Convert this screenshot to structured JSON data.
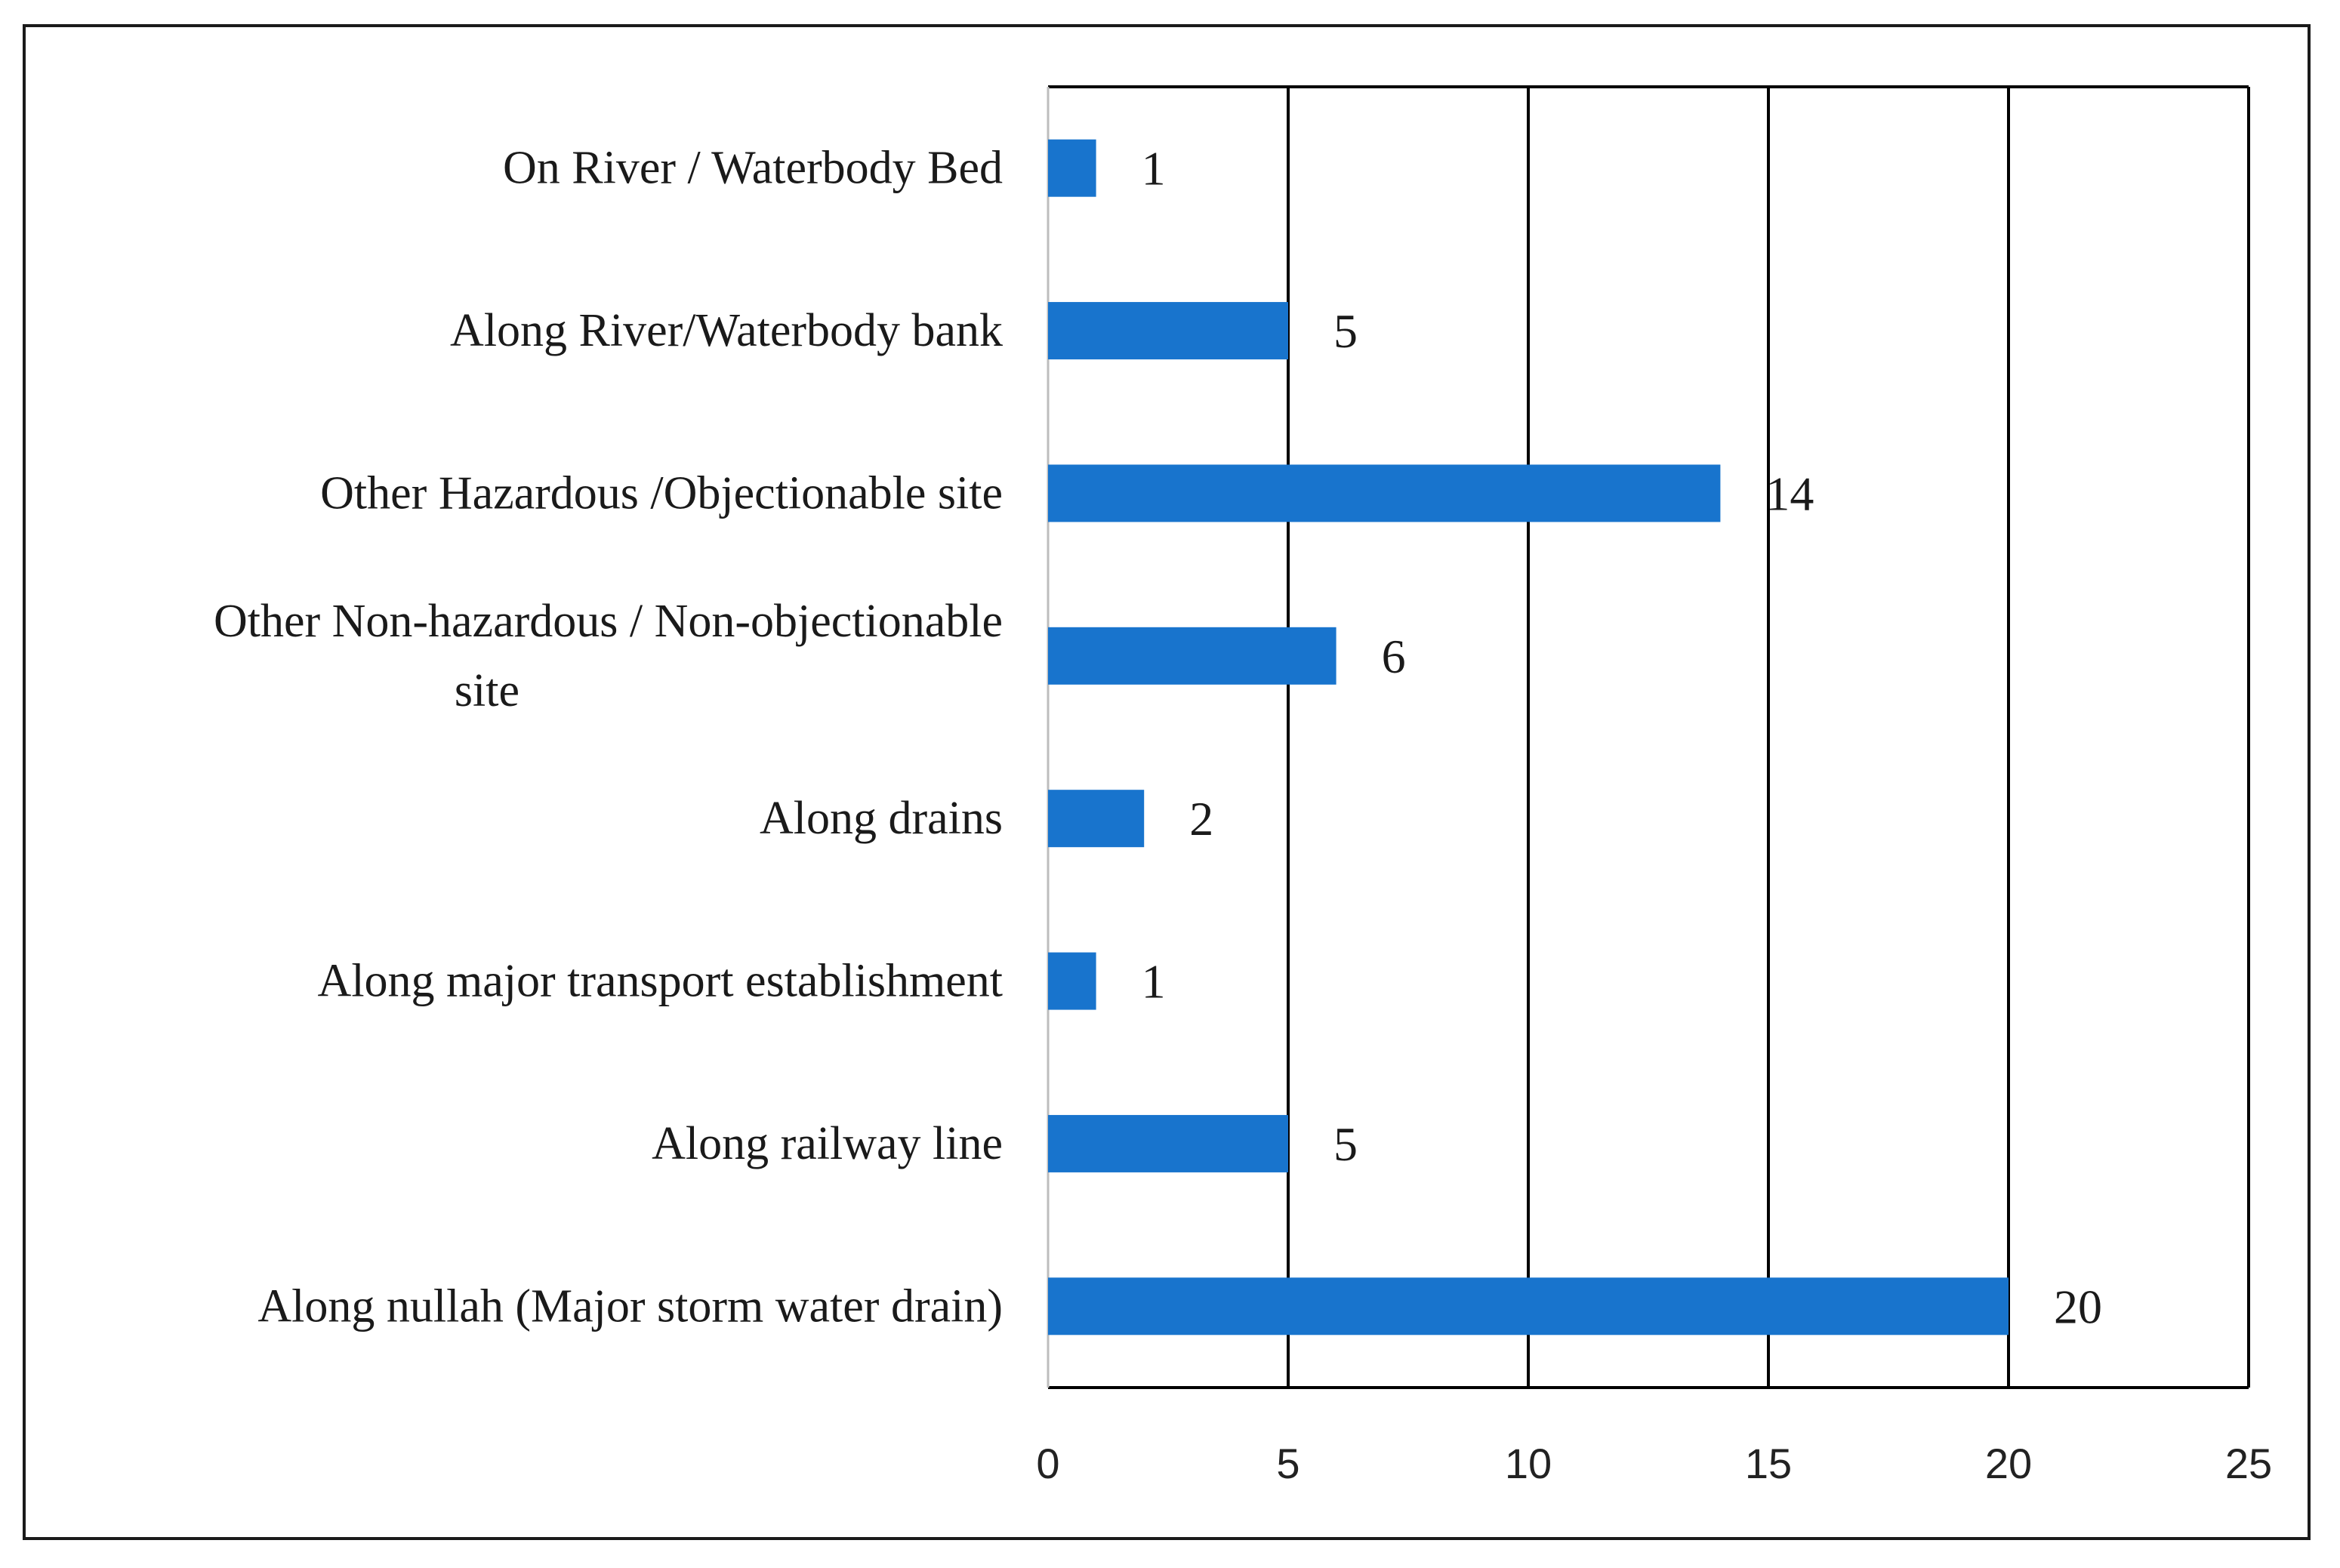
{
  "chart_data": {
    "type": "bar",
    "orientation": "horizontal",
    "categories": [
      [
        "On River / Waterbody Bed"
      ],
      [
        "Along River/Waterbody bank"
      ],
      [
        "Other Hazardous /Objectionable site"
      ],
      [
        "Other Non-hazardous / Non-objectionable",
        "site"
      ],
      [
        "Along drains"
      ],
      [
        "Along major transport establishment"
      ],
      [
        "Along railway line"
      ],
      [
        "Along nullah (Major storm water drain)"
      ]
    ],
    "values": [
      1,
      5,
      14,
      6,
      2,
      1,
      5,
      20
    ],
    "data_labels": [
      "1",
      "5",
      "14",
      "6",
      "2",
      "1",
      "5",
      "20"
    ],
    "xlim": [
      0,
      25
    ],
    "x_ticks": [
      0,
      5,
      10,
      15,
      20,
      25
    ],
    "x_tick_labels": [
      "0",
      "5",
      "10",
      "15",
      "20",
      "25"
    ],
    "title": "",
    "xlabel": "",
    "ylabel": "",
    "grid": "vertical",
    "legend": "none",
    "bar_color": "#1874CD",
    "grid_color": "#000000"
  }
}
